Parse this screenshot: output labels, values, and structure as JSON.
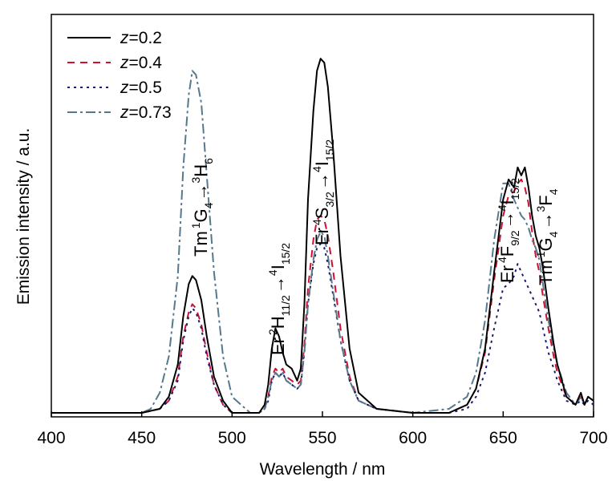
{
  "chart_data": {
    "type": "line",
    "xlabel": "Wavelength / nm",
    "ylabel": "Emission intensity / a.u.",
    "xlim": [
      400,
      700
    ],
    "ylim": [
      0,
      1.0
    ],
    "xticks": [
      400,
      450,
      500,
      550,
      600,
      650,
      700
    ],
    "grid": false,
    "legend_position": "top-left",
    "series": [
      {
        "name": "z=0.2",
        "var": "z",
        "val": "=0.2",
        "color": "#000000",
        "dash": "none",
        "x": [
          400,
          450,
          460,
          465,
          470,
          473,
          476,
          478,
          480,
          483,
          486,
          490,
          495,
          500,
          510,
          515,
          518,
          520,
          522,
          524,
          526,
          528,
          530,
          533,
          536,
          538,
          540,
          542,
          545,
          547,
          549,
          551,
          553,
          556,
          560,
          565,
          570,
          580,
          600,
          620,
          630,
          635,
          640,
          645,
          650,
          653,
          656,
          658,
          660,
          662,
          664,
          666,
          668,
          670,
          672,
          675,
          678,
          680,
          685,
          690,
          693,
          695,
          697,
          700
        ],
        "y": [
          0.01,
          0.01,
          0.02,
          0.05,
          0.13,
          0.25,
          0.33,
          0.35,
          0.34,
          0.29,
          0.2,
          0.1,
          0.04,
          0.01,
          0.01,
          0.01,
          0.03,
          0.08,
          0.17,
          0.22,
          0.2,
          0.16,
          0.13,
          0.12,
          0.09,
          0.12,
          0.28,
          0.54,
          0.76,
          0.86,
          0.89,
          0.88,
          0.82,
          0.66,
          0.4,
          0.17,
          0.06,
          0.02,
          0.01,
          0.01,
          0.03,
          0.07,
          0.17,
          0.36,
          0.54,
          0.59,
          0.57,
          0.62,
          0.6,
          0.62,
          0.57,
          0.5,
          0.45,
          0.42,
          0.37,
          0.27,
          0.18,
          0.13,
          0.05,
          0.03,
          0.06,
          0.03,
          0.05,
          0.04
        ]
      },
      {
        "name": "z=0.4",
        "var": "z",
        "val": "=0.4",
        "color": "#cc1133",
        "dash": "9,7",
        "x": [
          400,
          450,
          460,
          465,
          470,
          473,
          476,
          478,
          480,
          483,
          486,
          490,
          495,
          500,
          510,
          515,
          518,
          520,
          522,
          524,
          526,
          528,
          530,
          533,
          536,
          538,
          540,
          542,
          545,
          547,
          549,
          551,
          553,
          556,
          560,
          565,
          570,
          580,
          600,
          620,
          630,
          635,
          640,
          645,
          650,
          653,
          656,
          658,
          660,
          662,
          664,
          666,
          668,
          670,
          672,
          675,
          678,
          680,
          685,
          690,
          693,
          695,
          697,
          700
        ],
        "y": [
          0.01,
          0.01,
          0.02,
          0.04,
          0.1,
          0.2,
          0.26,
          0.28,
          0.27,
          0.23,
          0.16,
          0.08,
          0.03,
          0.01,
          0.01,
          0.01,
          0.02,
          0.05,
          0.1,
          0.12,
          0.11,
          0.12,
          0.1,
          0.09,
          0.08,
          0.09,
          0.18,
          0.32,
          0.44,
          0.49,
          0.5,
          0.49,
          0.45,
          0.36,
          0.22,
          0.1,
          0.04,
          0.02,
          0.01,
          0.01,
          0.03,
          0.07,
          0.16,
          0.34,
          0.5,
          0.55,
          0.56,
          0.58,
          0.59,
          0.57,
          0.53,
          0.46,
          0.4,
          0.36,
          0.3,
          0.22,
          0.15,
          0.11,
          0.05,
          0.03,
          0.05,
          0.03,
          0.05,
          0.04
        ]
      },
      {
        "name": "z=0.5",
        "var": "z",
        "val": "=0.5",
        "color": "#1a1a6e",
        "dash": "3,5",
        "x": [
          400,
          450,
          460,
          465,
          470,
          473,
          476,
          478,
          480,
          483,
          486,
          490,
          495,
          500,
          510,
          515,
          518,
          520,
          522,
          524,
          526,
          528,
          530,
          533,
          536,
          538,
          540,
          542,
          545,
          547,
          549,
          551,
          553,
          556,
          560,
          565,
          570,
          580,
          600,
          620,
          630,
          635,
          640,
          645,
          650,
          653,
          656,
          658,
          660,
          662,
          664,
          666,
          668,
          670,
          672,
          675,
          678,
          680,
          685,
          690,
          693,
          695,
          697,
          700
        ],
        "y": [
          0.01,
          0.01,
          0.02,
          0.04,
          0.09,
          0.19,
          0.25,
          0.27,
          0.26,
          0.22,
          0.15,
          0.08,
          0.03,
          0.01,
          0.01,
          0.01,
          0.02,
          0.04,
          0.09,
          0.11,
          0.1,
          0.11,
          0.09,
          0.08,
          0.07,
          0.08,
          0.16,
          0.28,
          0.38,
          0.42,
          0.43,
          0.42,
          0.38,
          0.3,
          0.19,
          0.09,
          0.04,
          0.02,
          0.01,
          0.01,
          0.02,
          0.05,
          0.11,
          0.22,
          0.32,
          0.33,
          0.35,
          0.38,
          0.36,
          0.34,
          0.32,
          0.3,
          0.28,
          0.26,
          0.22,
          0.16,
          0.12,
          0.09,
          0.04,
          0.03,
          0.04,
          0.03,
          0.04,
          0.03
        ]
      },
      {
        "name": "z=0.73",
        "var": "z",
        "val": "=0.73",
        "color": "#55788c",
        "dash": "12,4,3,4",
        "x": [
          400,
          450,
          455,
          460,
          465,
          470,
          473,
          476,
          478,
          480,
          483,
          486,
          490,
          495,
          500,
          510,
          515,
          518,
          520,
          522,
          524,
          526,
          528,
          530,
          533,
          536,
          538,
          540,
          542,
          545,
          547,
          549,
          551,
          553,
          556,
          560,
          565,
          570,
          580,
          600,
          620,
          630,
          635,
          640,
          645,
          650,
          653,
          656,
          658,
          660,
          662,
          664,
          666,
          668,
          670,
          672,
          675,
          678,
          680,
          685,
          690,
          693,
          695,
          697,
          700
        ],
        "y": [
          0.01,
          0.01,
          0.02,
          0.06,
          0.15,
          0.35,
          0.62,
          0.8,
          0.86,
          0.85,
          0.78,
          0.6,
          0.36,
          0.15,
          0.05,
          0.01,
          0.01,
          0.02,
          0.05,
          0.09,
          0.11,
          0.1,
          0.11,
          0.09,
          0.08,
          0.07,
          0.08,
          0.16,
          0.28,
          0.39,
          0.44,
          0.46,
          0.45,
          0.4,
          0.31,
          0.19,
          0.09,
          0.04,
          0.02,
          0.01,
          0.02,
          0.05,
          0.11,
          0.24,
          0.44,
          0.58,
          0.58,
          0.54,
          0.52,
          0.5,
          0.49,
          0.47,
          0.44,
          0.42,
          0.39,
          0.33,
          0.24,
          0.17,
          0.13,
          0.06,
          0.03,
          0.05,
          0.03,
          0.05,
          0.04
        ]
      }
    ],
    "annotations": [
      {
        "id": "tm-blue",
        "lead": "Tm",
        "sup1": "1",
        "mid": "G",
        "sub1": "4",
        "arrow": "→",
        "sup2": "3",
        "tail": "H",
        "sub2": "6"
      },
      {
        "id": "er-green-1",
        "lead": "Er",
        "sup1": "2",
        "mid": "H",
        "sub1": "11/2",
        "arrow": "→",
        "sup2": "4",
        "tail": "I",
        "sub2": "15/2"
      },
      {
        "id": "er-green-2",
        "lead": "Er",
        "sup1": "4",
        "mid": "S",
        "sub1": "3/2",
        "arrow": "→",
        "sup2": "4",
        "tail": "I",
        "sub2": "15/2"
      },
      {
        "id": "er-red",
        "lead": "Er",
        "sup1": "4",
        "mid": "F",
        "sub1": "9/2",
        "arrow": "→",
        "sup2": "4",
        "tail": "I",
        "sub2": "15/2"
      },
      {
        "id": "tm-red",
        "lead": "Tm",
        "sup1": "1",
        "mid": "G",
        "sub1": "4",
        "arrow": "→",
        "sup2": "3",
        "tail": "F",
        "sub2": "4"
      }
    ]
  }
}
